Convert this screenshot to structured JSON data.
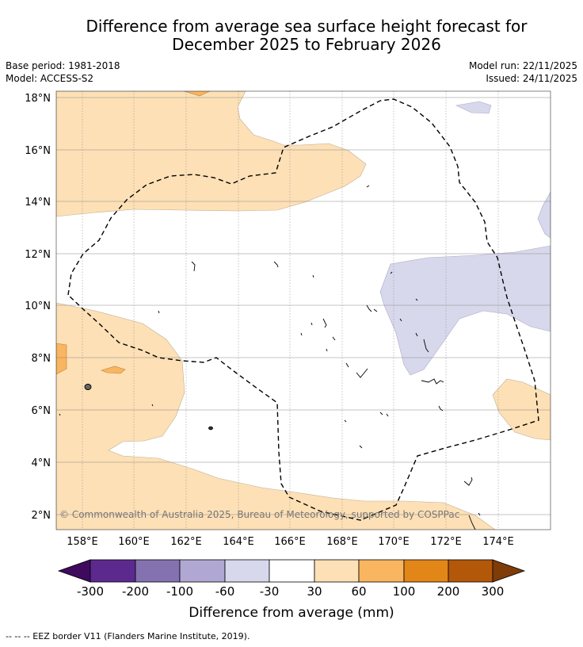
{
  "title": {
    "line1": "Difference from average sea surface height forecast for",
    "line2": "December 2025 to February 2026"
  },
  "meta": {
    "base_period": "Base period: 1981-2018",
    "model": "Model: ACCESS-S2",
    "model_run": "Model run: 22/11/2025",
    "issued": "Issued: 24/11/2025"
  },
  "map": {
    "lat_labels": [
      "18°N",
      "16°N",
      "14°N",
      "12°N",
      "10°N",
      "8°N",
      "6°N",
      "4°N",
      "2°N"
    ],
    "lon_labels": [
      "158°E",
      "160°E",
      "162°E",
      "164°E",
      "166°E",
      "168°E",
      "170°E",
      "172°E",
      "174°E"
    ],
    "credit": "© Commonwealth of Australia 2025, Bureau of Meteorology, supported by COSPPac"
  },
  "colorbar": {
    "ticks": [
      "-300",
      "-200",
      "-100",
      "-60",
      "-30",
      "30",
      "60",
      "100",
      "200",
      "300"
    ],
    "colors": [
      "#3f0a5e",
      "#5c2a8e",
      "#8472b0",
      "#b0a8d2",
      "#d8d8ec",
      "#ffffff",
      "#fde0b6",
      "#f9b55f",
      "#e38618",
      "#b35809",
      "#7f3b08"
    ],
    "title": "Difference from average (mm)"
  },
  "footer": {
    "legend": "--  --  -- EEZ border V11 (Flanders Marine Institute, 2019)."
  }
}
